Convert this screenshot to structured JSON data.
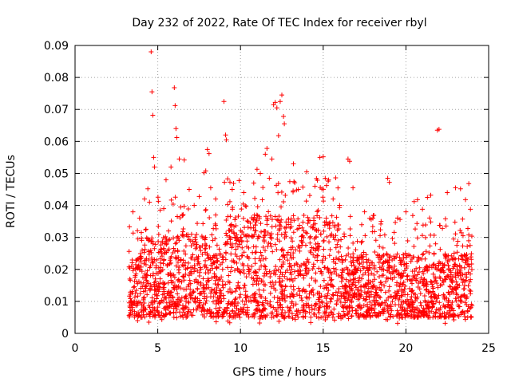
{
  "chart_data": {
    "type": "scatter",
    "title": "Day 232 of 2022, Rate Of TEC Index for receiver rbyl",
    "xlabel": "GPS time / hours",
    "ylabel": "ROTI / TECUs",
    "xlim": [
      0,
      25
    ],
    "ylim": [
      0,
      0.09
    ],
    "x_ticks": [
      0,
      5,
      10,
      15,
      20,
      25
    ],
    "x_tick_labels": [
      "0",
      "5",
      "10",
      "15",
      "20",
      "25"
    ],
    "y_ticks": [
      0,
      0.01,
      0.02,
      0.03,
      0.04,
      0.05,
      0.06,
      0.07,
      0.08,
      0.09
    ],
    "y_tick_labels": [
      "0",
      "0.01",
      "0.02",
      "0.03",
      "0.04",
      "0.05",
      "0.06",
      "0.07",
      "0.08",
      "0.09"
    ],
    "grid": true,
    "marker": "+",
    "color": "#ff0000",
    "series": [
      {
        "name": "ROTI",
        "points": [
          [
            4.6,
            0.088
          ],
          [
            4.65,
            0.0755
          ],
          [
            4.7,
            0.0682
          ],
          [
            4.75,
            0.055
          ],
          [
            4.8,
            0.052
          ],
          [
            4.4,
            0.0452
          ],
          [
            4.5,
            0.041
          ],
          [
            3.5,
            0.038
          ],
          [
            3.9,
            0.036
          ],
          [
            4.2,
            0.042
          ],
          [
            5.5,
            0.048
          ],
          [
            5.8,
            0.052
          ],
          [
            6.0,
            0.0768
          ],
          [
            6.05,
            0.0712
          ],
          [
            6.1,
            0.064
          ],
          [
            6.15,
            0.0612
          ],
          [
            6.3,
            0.0545
          ],
          [
            6.6,
            0.0542
          ],
          [
            6.9,
            0.045
          ],
          [
            7.2,
            0.04
          ],
          [
            7.8,
            0.0502
          ],
          [
            7.9,
            0.0508
          ],
          [
            8.0,
            0.0575
          ],
          [
            8.1,
            0.0562
          ],
          [
            8.2,
            0.0455
          ],
          [
            8.5,
            0.042
          ],
          [
            9.0,
            0.0725
          ],
          [
            9.1,
            0.062
          ],
          [
            9.15,
            0.0605
          ],
          [
            9.5,
            0.045
          ],
          [
            10.2,
            0.044
          ],
          [
            10.8,
            0.047
          ],
          [
            11.0,
            0.0513
          ],
          [
            11.2,
            0.05
          ],
          [
            11.5,
            0.056
          ],
          [
            11.6,
            0.0578
          ],
          [
            11.9,
            0.0545
          ],
          [
            12.0,
            0.0715
          ],
          [
            12.1,
            0.0722
          ],
          [
            12.2,
            0.0705
          ],
          [
            12.3,
            0.0618
          ],
          [
            12.4,
            0.0725
          ],
          [
            12.5,
            0.0745
          ],
          [
            12.6,
            0.0678
          ],
          [
            12.65,
            0.0655
          ],
          [
            13.2,
            0.053
          ],
          [
            13.5,
            0.045
          ],
          [
            14.0,
            0.0505
          ],
          [
            14.5,
            0.046
          ],
          [
            14.8,
            0.055
          ],
          [
            15.0,
            0.0552
          ],
          [
            15.2,
            0.0462
          ],
          [
            15.6,
            0.042
          ],
          [
            16.0,
            0.04
          ],
          [
            16.5,
            0.0545
          ],
          [
            16.6,
            0.0538
          ],
          [
            16.8,
            0.0455
          ],
          [
            17.5,
            0.038
          ],
          [
            18.0,
            0.036
          ],
          [
            18.5,
            0.035
          ],
          [
            18.9,
            0.0485
          ],
          [
            19.0,
            0.0472
          ],
          [
            19.5,
            0.036
          ],
          [
            20.0,
            0.038
          ],
          [
            20.5,
            0.0412
          ],
          [
            20.7,
            0.0418
          ],
          [
            21.0,
            0.0388
          ],
          [
            21.3,
            0.0425
          ],
          [
            21.5,
            0.0432
          ],
          [
            21.9,
            0.0635
          ],
          [
            22.0,
            0.0638
          ],
          [
            22.5,
            0.044
          ],
          [
            23.0,
            0.0455
          ],
          [
            23.3,
            0.0452
          ],
          [
            23.6,
            0.0418
          ],
          [
            23.8,
            0.0468
          ],
          [
            23.9,
            0.0388
          ]
        ],
        "dense_band": {
          "x_range": [
            3.25,
            24.0
          ],
          "typical_min": 0.005,
          "typical_max": 0.025,
          "baseline_min": 0.003
        }
      }
    ]
  }
}
